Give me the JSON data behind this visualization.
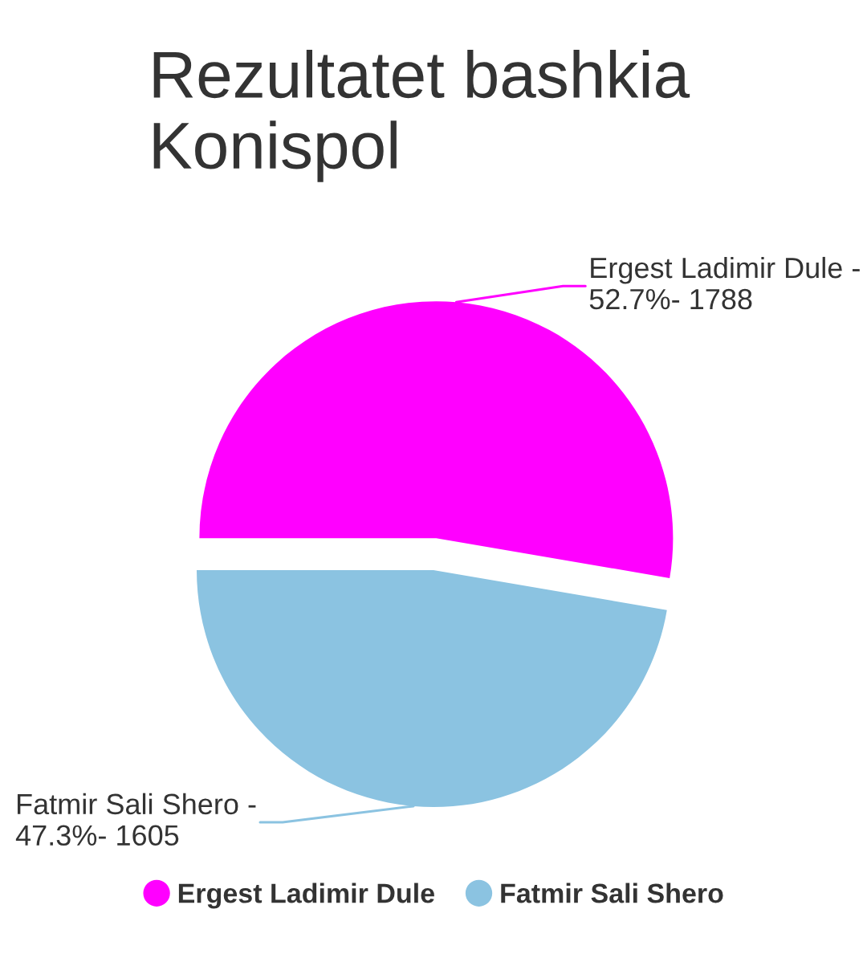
{
  "chart_data": {
    "type": "pie",
    "title": "Rezultatet bashkia\nKonispol",
    "categories": [
      "Ergest Ladimir Dule",
      "Fatmir Sali Shero"
    ],
    "values": [
      52.7,
      47.3
    ],
    "colors": [
      "#ff00ff",
      "#8bc3e1"
    ],
    "value_labels": [
      "Ergest Ladimir Dule -\n52.7%- 1788",
      "Fatmir Sali Shero -\n47.3%- 1605"
    ],
    "legend": "bottom"
  }
}
